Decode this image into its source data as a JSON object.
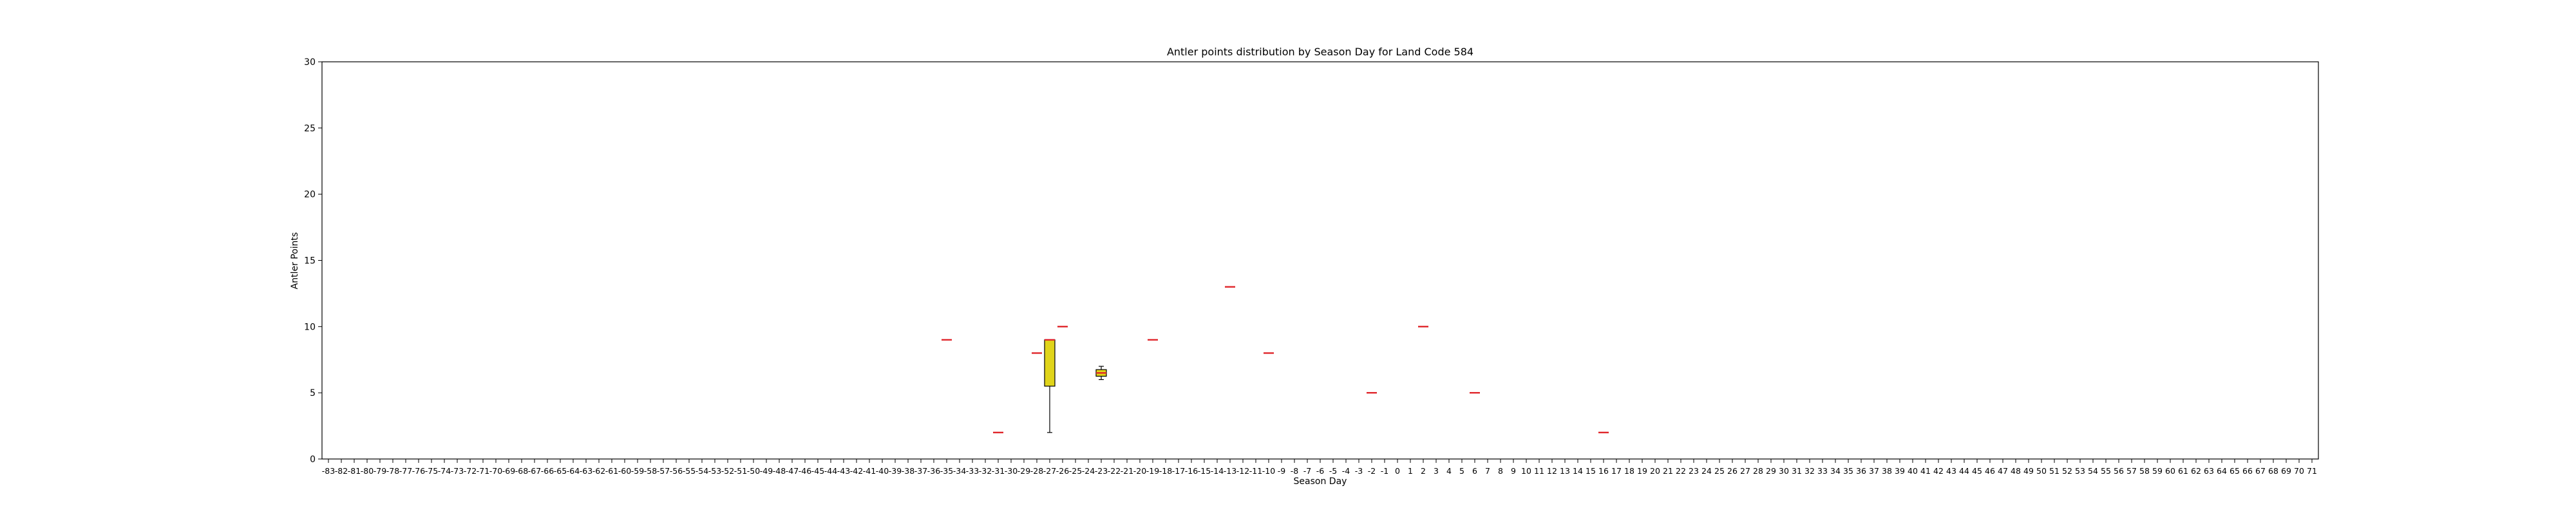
{
  "chart_data": {
    "type": "box",
    "title": "Antler points distribution by Season Day for Land Code 584",
    "xlabel": "Season Day",
    "ylabel": "Antler Points",
    "ylim": [
      0,
      30
    ],
    "yticks": [
      0,
      5,
      10,
      15,
      20,
      25,
      30
    ],
    "x_range": [
      -83,
      71
    ],
    "grid": false,
    "colors": {
      "box_fill": "#e0d41a",
      "box_edge": "#000000",
      "median": "#e0262b",
      "whisker": "#000000"
    },
    "boxes": [
      {
        "x": -35,
        "min": 9,
        "q1": 9,
        "median": 9,
        "q3": 9,
        "max": 9
      },
      {
        "x": -31,
        "min": 2,
        "q1": 2,
        "median": 2,
        "q3": 2,
        "max": 2
      },
      {
        "x": -28,
        "min": 8,
        "q1": 8,
        "median": 8,
        "q3": 8,
        "max": 8
      },
      {
        "x": -27,
        "min": 2,
        "q1": 5.5,
        "median": 9,
        "q3": 9,
        "max": 9
      },
      {
        "x": -26,
        "min": 10,
        "q1": 10,
        "median": 10,
        "q3": 10,
        "max": 10
      },
      {
        "x": -23,
        "min": 6,
        "q1": 6.25,
        "median": 6.5,
        "q3": 6.75,
        "max": 7
      },
      {
        "x": -19,
        "min": 9,
        "q1": 9,
        "median": 9,
        "q3": 9,
        "max": 9
      },
      {
        "x": -13,
        "min": 13,
        "q1": 13,
        "median": 13,
        "q3": 13,
        "max": 13
      },
      {
        "x": -10,
        "min": 8,
        "q1": 8,
        "median": 8,
        "q3": 8,
        "max": 8
      },
      {
        "x": -2,
        "min": 5,
        "q1": 5,
        "median": 5,
        "q3": 5,
        "max": 5
      },
      {
        "x": 2,
        "min": 10,
        "q1": 10,
        "median": 10,
        "q3": 10,
        "max": 10
      },
      {
        "x": 6,
        "min": 5,
        "q1": 5,
        "median": 5,
        "q3": 5,
        "max": 5
      },
      {
        "x": 16,
        "min": 2,
        "q1": 2,
        "median": 2,
        "q3": 2,
        "max": 2
      }
    ]
  }
}
